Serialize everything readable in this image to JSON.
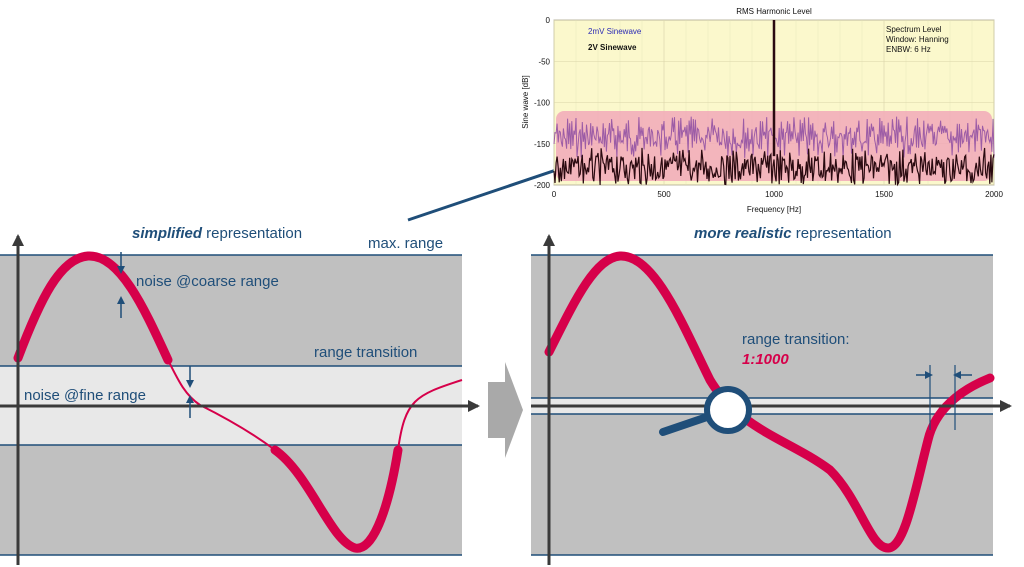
{
  "left_panel": {
    "title_emphasis": "simplified",
    "title_rest": " representation",
    "max_range": "max. range",
    "noise_coarse": "noise @coarse range",
    "range_transition": "range transition",
    "noise_fine": "noise @fine range"
  },
  "right_panel": {
    "title_emphasis": "more realistic",
    "title_rest": "  representation",
    "range_transition": "range transition:",
    "ratio": "1:1000"
  },
  "colors": {
    "panel_gray": "#c0c0c0",
    "fine_band": "#e8e8e8",
    "blue_line": "#1f4e79",
    "signal_red": "#d6004a",
    "chart_bg": "#fbf8cc",
    "noise_band": "#f1a9b8"
  },
  "chart_data": {
    "type": "line",
    "title": "RMS Harmonic Level",
    "xlabel": "Frequency [Hz]",
    "ylabel": "Sine wave [dB]",
    "xlim": [
      0,
      2000
    ],
    "ylim": [
      -200,
      0
    ],
    "xticks": [
      "0",
      "500",
      "1000",
      "1500",
      "2000"
    ],
    "yticks": [
      "0",
      "-50",
      "-100",
      "-150",
      "-200"
    ],
    "series": [
      {
        "name": "2mV Sinewave",
        "color": "#9c5ca6",
        "noise_floor_db": -125,
        "peak_hz": 1000,
        "peak_db": -112
      },
      {
        "name": "2V Sinewave",
        "color": "#2a0a10",
        "noise_floor_db": -165,
        "peak_hz": 1000,
        "peak_db": 0
      }
    ],
    "info": [
      "Spectrum Level",
      "Window: Hanning",
      "ENBW: 6 Hz"
    ],
    "grid": true,
    "legend": "top-left"
  }
}
